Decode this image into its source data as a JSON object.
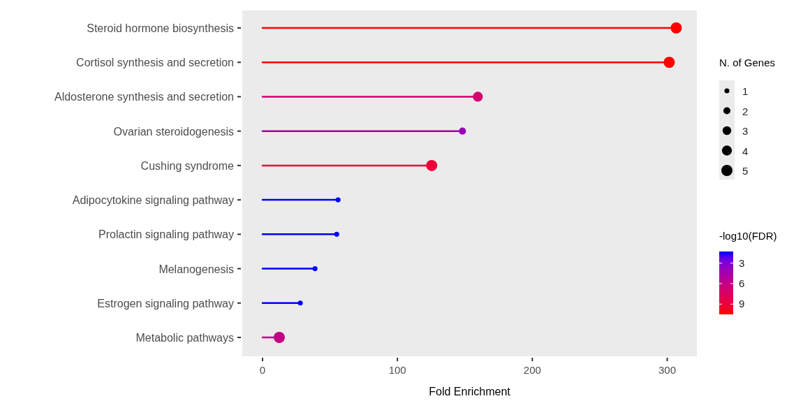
{
  "chart_data": {
    "type": "lollipop",
    "orientation": "horizontal",
    "xlabel": "Fold Enrichment",
    "categories": [
      "Steroid hormone biosynthesis",
      "Cortisol synthesis and secretion",
      "Aldosterone synthesis and secretion",
      "Ovarian steroidogenesis",
      "Cushing syndrome",
      "Adipocytokine signaling pathway",
      "Prolactin signaling pathway",
      "Melanogenesis",
      "Estrogen signaling pathway",
      "Metabolic pathways"
    ],
    "values": [
      306.7,
      301.5,
      159.6,
      148.2,
      125.4,
      56,
      55,
      38.9,
      28,
      12.4
    ],
    "sizes": [
      5,
      5,
      4,
      2,
      5,
      1,
      1,
      1,
      1,
      5
    ],
    "size_legend": [
      1,
      2,
      3,
      4,
      5
    ],
    "legend_title": "N. of Genes",
    "cvalues": [
      10.5,
      10.5,
      7,
      4,
      9,
      1.3,
      1.3,
      1.3,
      1.3,
      6
    ],
    "clabel": "-log10(FDR)",
    "clim": [
      1.3,
      10.5
    ],
    "cticks": [
      3,
      6,
      9
    ],
    "xlim": [
      -15,
      322
    ],
    "xticks": [
      0,
      100,
      200,
      300
    ],
    "grid": false
  }
}
